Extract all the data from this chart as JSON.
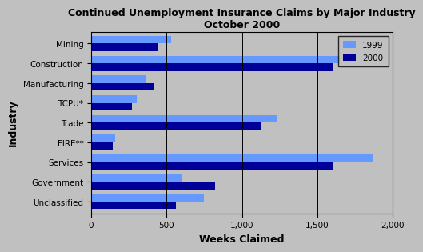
{
  "title": "Continued Unemployment Insurance Claims by Major Industry\nOctober 2000",
  "categories": [
    "Mining",
    "Construction",
    "Manufacturing",
    "TCPU*",
    "Trade",
    "FIRE**",
    "Services",
    "Government",
    "Unclassified"
  ],
  "values_1999": [
    530,
    1650,
    360,
    300,
    1230,
    160,
    1870,
    600,
    750
  ],
  "values_2000": [
    440,
    1600,
    420,
    270,
    1130,
    145,
    1600,
    820,
    560
  ],
  "color_1999": "#6699FF",
  "color_2000": "#000099",
  "xlabel": "Weeks Claimed",
  "ylabel": "Industry",
  "xlim": [
    0,
    2000
  ],
  "xticks": [
    0,
    500,
    1000,
    1500,
    2000
  ],
  "xticklabels": [
    "0",
    "500",
    "1,000",
    "1,500",
    "2,000"
  ],
  "legend_labels": [
    "1999",
    "2000"
  ],
  "background_color": "#C0C0C0",
  "plot_background_color": "#C0C0C0",
  "title_fontsize": 9,
  "axis_label_fontsize": 9,
  "tick_fontsize": 7.5,
  "bar_height": 0.38
}
